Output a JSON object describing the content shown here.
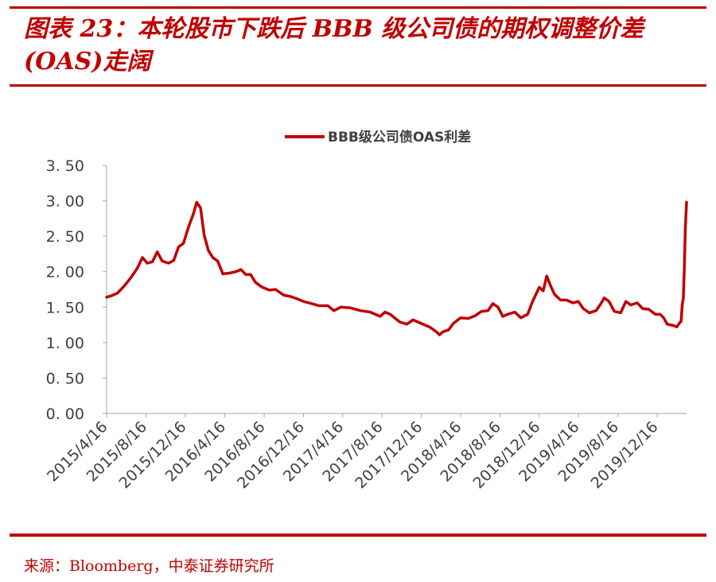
{
  "header": {
    "title": "图表 23：本轮股市下跌后 BBB 级公司债的期权调整价差(OAS)走阔"
  },
  "footer": {
    "source": "来源：Bloomberg，中泰证券研究所"
  },
  "chart_data": {
    "type": "line",
    "series": [
      {
        "name": "BBB级公司债OAS利差",
        "color": "#c00000",
        "points": [
          [
            "2015-04-16",
            1.64
          ],
          [
            "2015-05-01",
            1.66
          ],
          [
            "2015-05-20",
            1.7
          ],
          [
            "2015-06-10",
            1.8
          ],
          [
            "2015-07-01",
            1.92
          ],
          [
            "2015-07-20",
            2.05
          ],
          [
            "2015-08-05",
            2.2
          ],
          [
            "2015-08-20",
            2.12
          ],
          [
            "2015-09-05",
            2.14
          ],
          [
            "2015-09-20",
            2.28
          ],
          [
            "2015-10-05",
            2.15
          ],
          [
            "2015-10-25",
            2.12
          ],
          [
            "2015-11-10",
            2.16
          ],
          [
            "2015-11-25",
            2.35
          ],
          [
            "2015-12-10",
            2.4
          ],
          [
            "2015-12-25",
            2.62
          ],
          [
            "2016-01-10",
            2.82
          ],
          [
            "2016-01-20",
            2.98
          ],
          [
            "2016-02-01",
            2.9
          ],
          [
            "2016-02-12",
            2.52
          ],
          [
            "2016-02-25",
            2.3
          ],
          [
            "2016-03-10",
            2.2
          ],
          [
            "2016-03-25",
            2.15
          ],
          [
            "2016-04-10",
            1.97
          ],
          [
            "2016-05-01",
            1.98
          ],
          [
            "2016-05-20",
            2.0
          ],
          [
            "2016-06-05",
            2.03
          ],
          [
            "2016-06-20",
            1.96
          ],
          [
            "2016-07-05",
            1.96
          ],
          [
            "2016-07-20",
            1.85
          ],
          [
            "2016-08-10",
            1.78
          ],
          [
            "2016-09-01",
            1.74
          ],
          [
            "2016-09-20",
            1.75
          ],
          [
            "2016-10-15",
            1.67
          ],
          [
            "2016-11-05",
            1.65
          ],
          [
            "2016-11-25",
            1.62
          ],
          [
            "2016-12-16",
            1.58
          ],
          [
            "2017-01-10",
            1.55
          ],
          [
            "2017-02-01",
            1.52
          ],
          [
            "2017-03-01",
            1.52
          ],
          [
            "2017-03-20",
            1.45
          ],
          [
            "2017-04-10",
            1.5
          ],
          [
            "2017-05-10",
            1.49
          ],
          [
            "2017-06-10",
            1.45
          ],
          [
            "2017-07-10",
            1.43
          ],
          [
            "2017-08-10",
            1.37
          ],
          [
            "2017-08-25",
            1.43
          ],
          [
            "2017-09-10",
            1.4
          ],
          [
            "2017-10-10",
            1.29
          ],
          [
            "2017-11-01",
            1.26
          ],
          [
            "2017-11-20",
            1.32
          ],
          [
            "2017-12-10",
            1.28
          ],
          [
            "2018-01-10",
            1.22
          ],
          [
            "2018-02-01",
            1.15
          ],
          [
            "2018-02-10",
            1.11
          ],
          [
            "2018-02-20",
            1.15
          ],
          [
            "2018-03-10",
            1.18
          ],
          [
            "2018-03-25",
            1.27
          ],
          [
            "2018-04-16",
            1.35
          ],
          [
            "2018-05-10",
            1.34
          ],
          [
            "2018-06-01",
            1.38
          ],
          [
            "2018-06-20",
            1.44
          ],
          [
            "2018-07-10",
            1.45
          ],
          [
            "2018-07-25",
            1.55
          ],
          [
            "2018-08-10",
            1.5
          ],
          [
            "2018-08-25",
            1.37
          ],
          [
            "2018-09-10",
            1.4
          ],
          [
            "2018-10-01",
            1.43
          ],
          [
            "2018-10-20",
            1.35
          ],
          [
            "2018-11-10",
            1.4
          ],
          [
            "2018-11-25",
            1.58
          ],
          [
            "2018-12-16",
            1.78
          ],
          [
            "2018-12-28",
            1.73
          ],
          [
            "2019-01-08",
            1.94
          ],
          [
            "2019-01-20",
            1.8
          ],
          [
            "2019-02-01",
            1.68
          ],
          [
            "2019-02-20",
            1.6
          ],
          [
            "2019-03-10",
            1.6
          ],
          [
            "2019-03-30",
            1.56
          ],
          [
            "2019-04-16",
            1.58
          ],
          [
            "2019-05-01",
            1.48
          ],
          [
            "2019-05-20",
            1.42
          ],
          [
            "2019-06-10",
            1.45
          ],
          [
            "2019-06-25",
            1.55
          ],
          [
            "2019-07-05",
            1.63
          ],
          [
            "2019-07-20",
            1.58
          ],
          [
            "2019-08-05",
            1.44
          ],
          [
            "2019-08-25",
            1.42
          ],
          [
            "2019-09-10",
            1.58
          ],
          [
            "2019-09-25",
            1.53
          ],
          [
            "2019-10-15",
            1.56
          ],
          [
            "2019-11-01",
            1.48
          ],
          [
            "2019-11-20",
            1.47
          ],
          [
            "2019-12-10",
            1.4
          ],
          [
            "2019-12-25",
            1.4
          ],
          [
            "2020-01-05",
            1.35
          ],
          [
            "2020-01-16",
            1.26
          ],
          [
            "2020-02-05",
            1.24
          ],
          [
            "2020-02-15",
            1.22
          ],
          [
            "2020-02-22",
            1.27
          ],
          [
            "2020-02-28",
            1.3
          ],
          [
            "2020-03-03",
            1.55
          ],
          [
            "2020-03-06",
            1.62
          ],
          [
            "2020-03-09",
            2.05
          ],
          [
            "2020-03-12",
            2.6
          ],
          [
            "2020-03-16",
            2.98
          ]
        ]
      }
    ],
    "x_tick_labels": [
      "2015/4/16",
      "2015/8/16",
      "2015/12/16",
      "2016/4/16",
      "2016/8/16",
      "2016/12/16",
      "2017/4/16",
      "2017/8/16",
      "2017/12/16",
      "2018/4/16",
      "2018/8/16",
      "2018/12/16",
      "2019/4/16",
      "2019/8/16",
      "2019/12/16"
    ],
    "x_range": [
      "2015-04-16",
      "2020-03-16"
    ],
    "y_tick_labels": [
      "0. 00",
      "0. 50",
      "1. 00",
      "1. 50",
      "2. 00",
      "2. 50",
      "3. 00",
      "3. 50"
    ],
    "ylim": [
      0,
      3.5
    ],
    "grid": false,
    "legend_position": "top"
  }
}
